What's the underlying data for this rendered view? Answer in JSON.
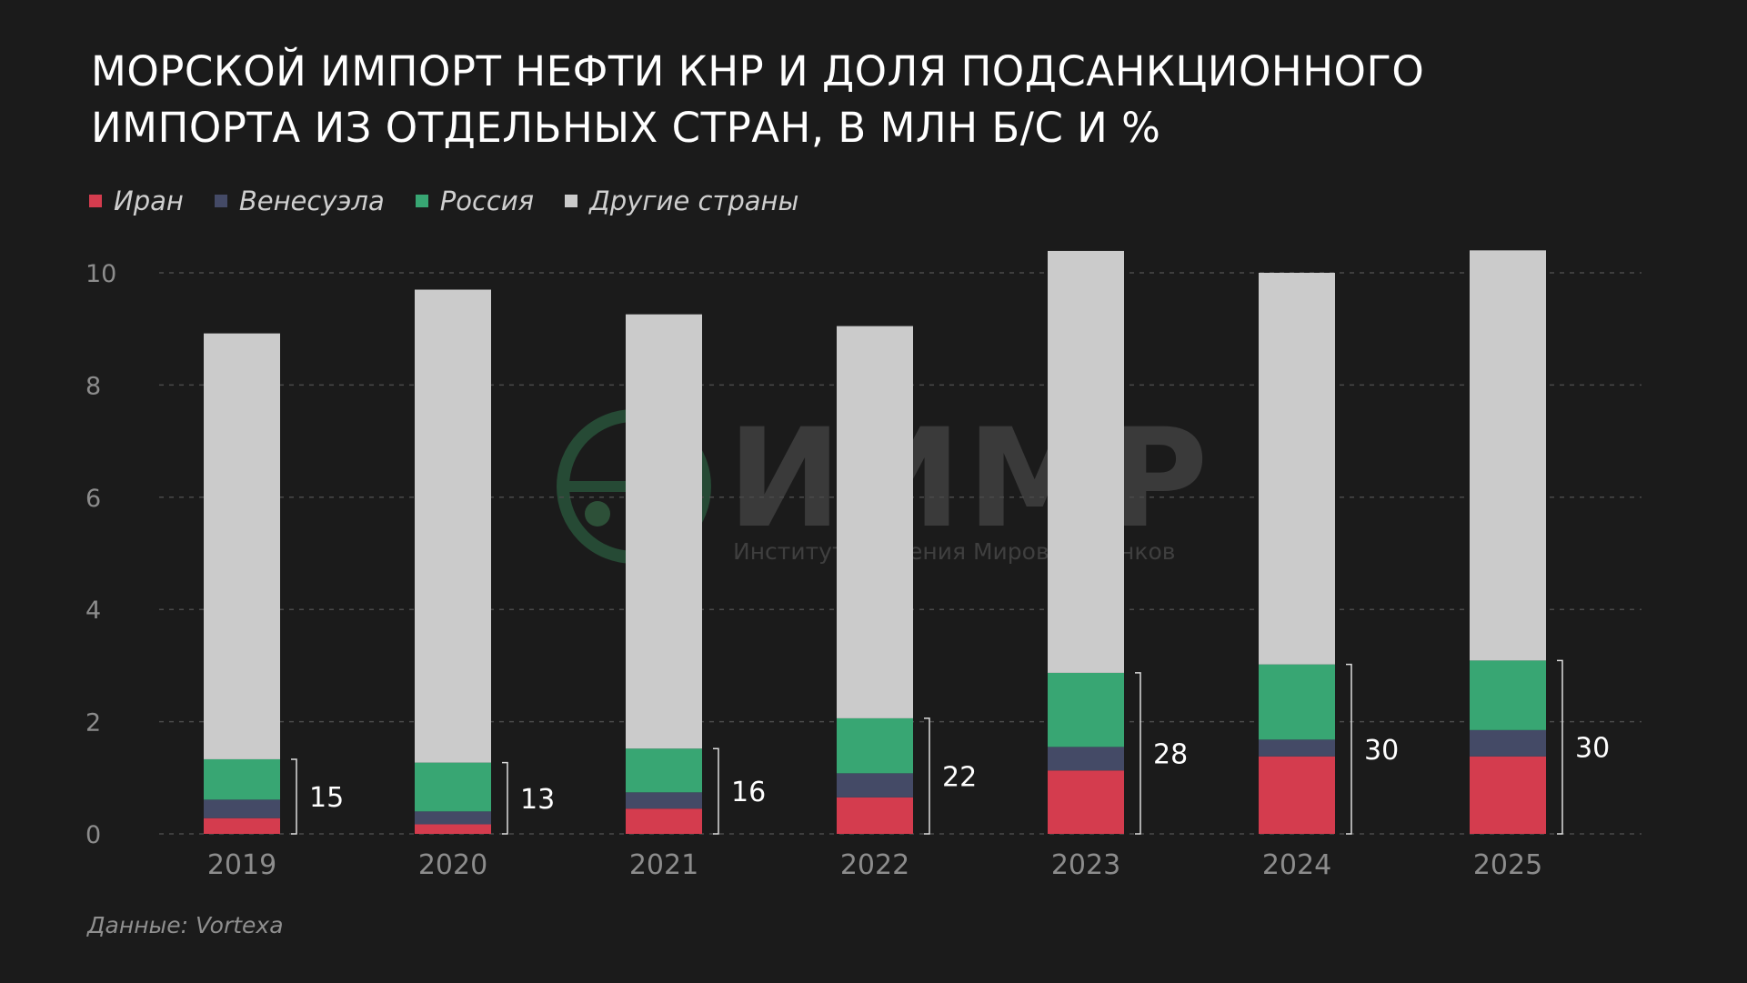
{
  "title_line1": "Морской импорт нефти КНР и доля подсанкционного",
  "title_line2": "импорта из отдельных стран, в млн б/с и %",
  "legend": [
    {
      "label": "Иран",
      "color": "#d43c4e"
    },
    {
      "label": "Венесуэла",
      "color": "#444a66"
    },
    {
      "label": "Россия",
      "color": "#38a673"
    },
    {
      "label": "Другие страны",
      "color": "#cbcbcb"
    }
  ],
  "source": "Данные: Vortexa",
  "watermark": {
    "main": "ИИМР",
    "sub": "Институт Изучения Мировых Рынков"
  },
  "chart_data": {
    "type": "bar",
    "stacked": true,
    "categories": [
      "2019",
      "2020",
      "2021",
      "2022",
      "2023",
      "2024",
      "2025"
    ],
    "series": [
      {
        "name": "Иран",
        "color": "#d43c4e",
        "values": [
          0.28,
          0.17,
          0.45,
          0.65,
          1.13,
          1.38,
          1.38
        ]
      },
      {
        "name": "Венесуэла",
        "color": "#444a66",
        "values": [
          0.33,
          0.23,
          0.29,
          0.43,
          0.42,
          0.3,
          0.47
        ]
      },
      {
        "name": "Россия",
        "color": "#38a673",
        "values": [
          0.72,
          0.87,
          0.78,
          0.98,
          1.32,
          1.34,
          1.24
        ]
      },
      {
        "name": "Другие страны",
        "color": "#cbcbcb",
        "values": [
          7.59,
          8.43,
          7.74,
          6.99,
          7.52,
          6.98,
          7.31
        ]
      }
    ],
    "share_labels": [
      "15",
      "13",
      "16",
      "22",
      "28",
      "30",
      "30"
    ],
    "yticks": [
      "0",
      "2",
      "4",
      "6",
      "8",
      "10"
    ],
    "ylim": [
      0,
      10
    ],
    "grid": true,
    "legend_position": "top-left"
  }
}
